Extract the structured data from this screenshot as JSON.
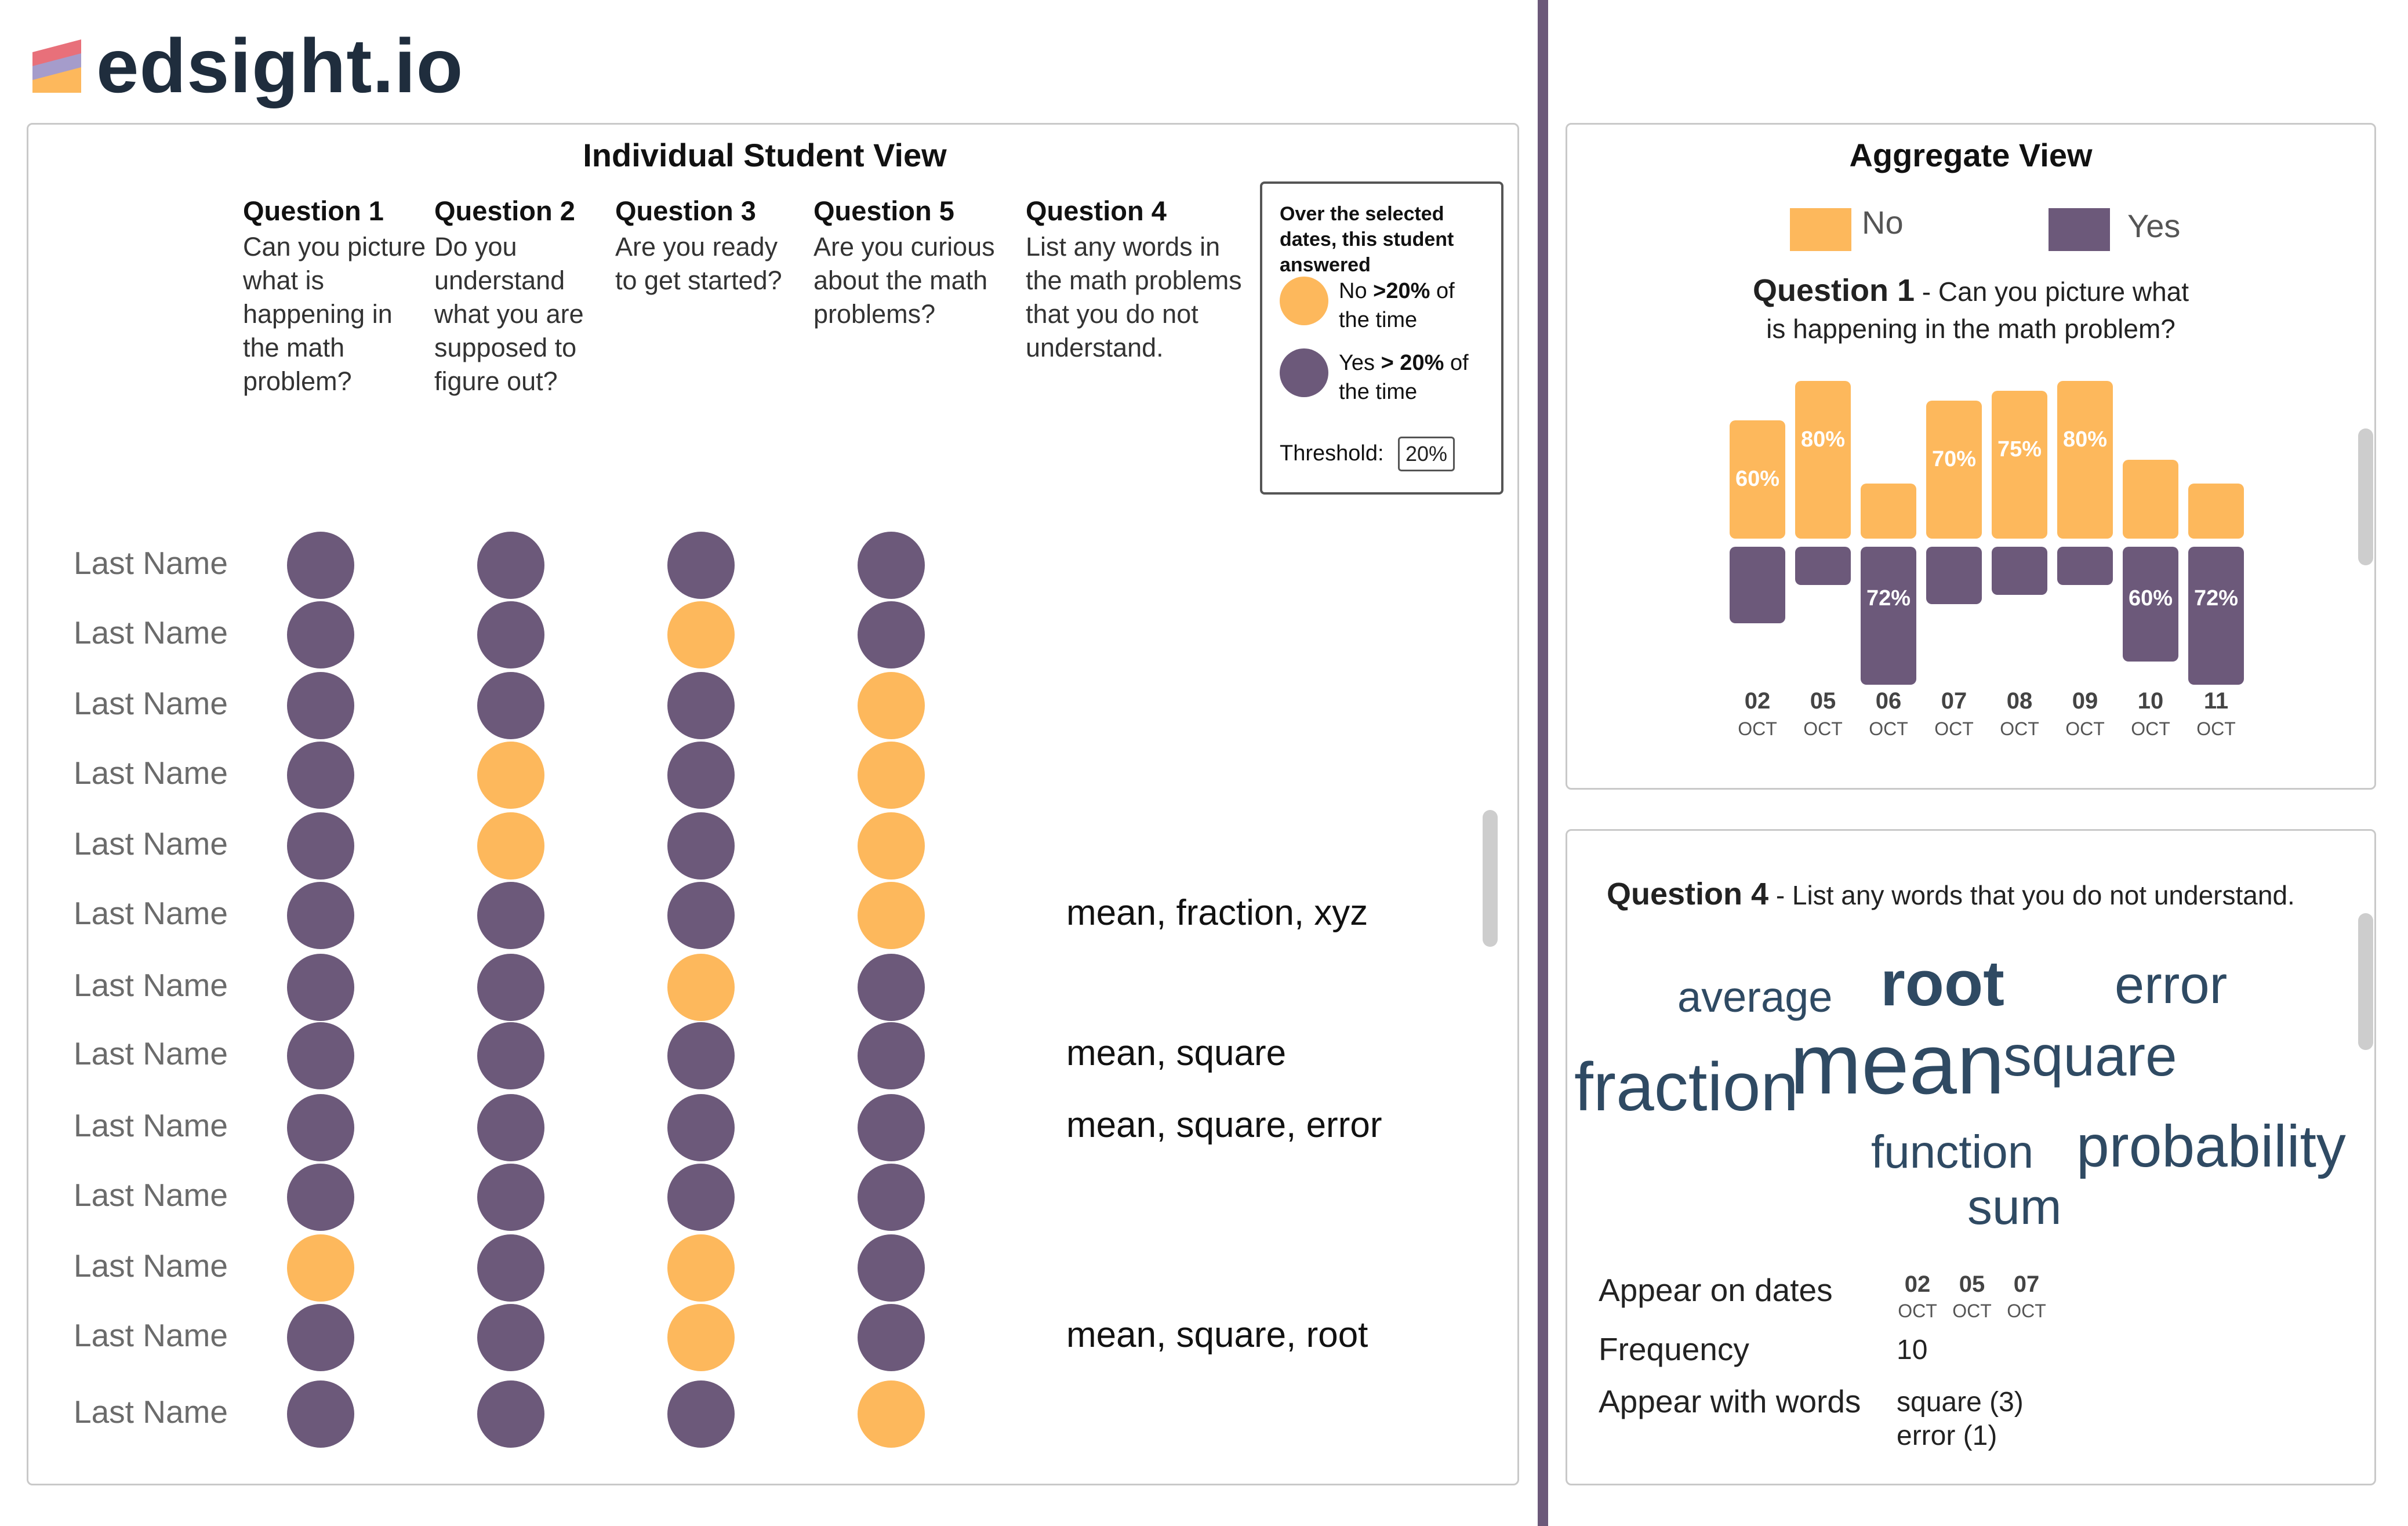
{
  "brand": {
    "name": "edsight.io"
  },
  "student_view": {
    "title": "Individual Student View",
    "questions": [
      {
        "label": "Question 1",
        "text": "Can you picture what is happening in the math problem?"
      },
      {
        "label": "Question 2",
        "text": "Do you understand what you are supposed to figure out?"
      },
      {
        "label": "Question 3",
        "text": "Are you ready to get started?"
      },
      {
        "label": "Question 5",
        "text": "Are you curious about the math problems?"
      },
      {
        "label": "Question 4",
        "text": "List any words in the math problems that you do not understand."
      }
    ],
    "legend": {
      "header": "Over the selected dates, this student answered",
      "no_prefix": "No",
      "no_pct": ">20%",
      "no_suffix": "of the time",
      "yes_prefix": "Yes",
      "yes_pct": "> 20%",
      "yes_suffix": "of the time",
      "threshold_label": "Threshold:",
      "threshold_value": "20%"
    },
    "rows": [
      {
        "name": "Last Name",
        "answers": [
          "yes",
          "yes",
          "yes",
          "yes"
        ],
        "words": ""
      },
      {
        "name": "Last Name",
        "answers": [
          "yes",
          "yes",
          "no",
          "yes"
        ],
        "words": ""
      },
      {
        "name": "Last Name",
        "answers": [
          "yes",
          "yes",
          "yes",
          "no"
        ],
        "words": ""
      },
      {
        "name": "Last Name",
        "answers": [
          "yes",
          "no",
          "yes",
          "no"
        ],
        "words": ""
      },
      {
        "name": "Last Name",
        "answers": [
          "yes",
          "no",
          "yes",
          "no"
        ],
        "words": ""
      },
      {
        "name": "Last Name",
        "answers": [
          "yes",
          "yes",
          "yes",
          "no"
        ],
        "words": "mean, fraction, xyz"
      },
      {
        "name": "Last Name",
        "answers": [
          "yes",
          "yes",
          "no",
          "yes"
        ],
        "words": ""
      },
      {
        "name": "Last Name",
        "answers": [
          "yes",
          "yes",
          "yes",
          "yes"
        ],
        "words": "mean, square"
      },
      {
        "name": "Last Name",
        "answers": [
          "yes",
          "yes",
          "yes",
          "yes"
        ],
        "words": "mean, square, error"
      },
      {
        "name": "Last Name",
        "answers": [
          "yes",
          "yes",
          "yes",
          "yes"
        ],
        "words": ""
      },
      {
        "name": "Last Name",
        "answers": [
          "no",
          "yes",
          "no",
          "yes"
        ],
        "words": ""
      },
      {
        "name": "Last Name",
        "answers": [
          "yes",
          "yes",
          "no",
          "yes"
        ],
        "words": "mean, square, root"
      },
      {
        "name": "Last Name",
        "answers": [
          "yes",
          "yes",
          "yes",
          "no"
        ],
        "words": ""
      }
    ],
    "colors": {
      "yes": "#6c597a",
      "no": "#fdb85c"
    }
  },
  "aggregate_view": {
    "title": "Aggregate View",
    "legend_no": "No",
    "legend_yes": "Yes",
    "question_label": "Question 1",
    "question_text_line1": "- Can you picture what",
    "question_text_line2": "is happening in the math problem?",
    "bars": [
      {
        "day": "02",
        "month": "OCT",
        "no": 60,
        "yes": 40,
        "no_label": "60%",
        "yes_label": ""
      },
      {
        "day": "05",
        "month": "OCT",
        "no": 80,
        "yes": 20,
        "no_label": "80%",
        "yes_label": ""
      },
      {
        "day": "06",
        "month": "OCT",
        "no": 28,
        "yes": 72,
        "no_label": "",
        "yes_label": "72%"
      },
      {
        "day": "07",
        "month": "OCT",
        "no": 70,
        "yes": 30,
        "no_label": "70%",
        "yes_label": ""
      },
      {
        "day": "08",
        "month": "OCT",
        "no": 75,
        "yes": 25,
        "no_label": "75%",
        "yes_label": ""
      },
      {
        "day": "09",
        "month": "OCT",
        "no": 80,
        "yes": 20,
        "no_label": "80%",
        "yes_label": ""
      },
      {
        "day": "10",
        "month": "OCT",
        "no": 40,
        "yes": 60,
        "no_label": "",
        "yes_label": "60%"
      },
      {
        "day": "11",
        "month": "OCT",
        "no": 28,
        "yes": 72,
        "no_label": "",
        "yes_label": "72%"
      }
    ]
  },
  "word_cloud": {
    "question_label": "Question 4",
    "question_text": "- List any words that you do not understand.",
    "words": [
      "average",
      "root",
      "error",
      "fraction",
      "mean",
      "square",
      "function",
      "probability",
      "sum"
    ],
    "details": {
      "appear_label": "Appear on dates",
      "dates": [
        {
          "day": "02",
          "month": "OCT"
        },
        {
          "day": "05",
          "month": "OCT"
        },
        {
          "day": "07",
          "month": "OCT"
        }
      ],
      "frequency_label": "Frequency",
      "frequency_value": "10",
      "with_label": "Appear with words",
      "with_words": [
        "square (3)",
        "error (1)"
      ]
    }
  }
}
